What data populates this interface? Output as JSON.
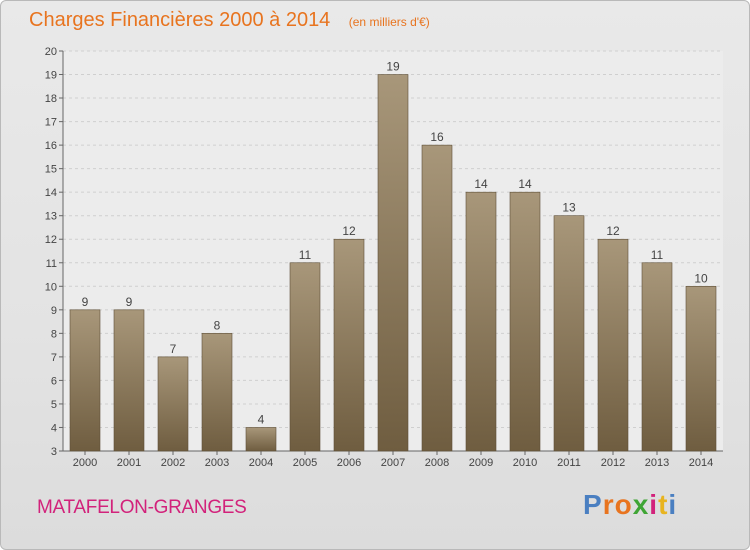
{
  "header": {
    "title": "Charges Financières 2000 à 2014",
    "unit": "(en milliers d'€)"
  },
  "footer": {
    "commune": "MATAFELON-GRANGES",
    "brand": "Proxiti"
  },
  "colors": {
    "title": "#e8741f",
    "commune": "#d2227b",
    "bar_top": "#a8977a",
    "bar_bottom": "#6f5d40",
    "brand_letters": [
      "#4a7fc1",
      "#e8741f",
      "#e8741f",
      "#3fa535",
      "#d2227b",
      "#e8b41f",
      "#4a7fc1"
    ]
  },
  "chart_data": {
    "type": "bar",
    "title": "Charges Financières 2000 à 2014",
    "subtitle": "(en milliers d'€)",
    "categories": [
      "2000",
      "2001",
      "2002",
      "2003",
      "2004",
      "2005",
      "2006",
      "2007",
      "2008",
      "2009",
      "2010",
      "2011",
      "2012",
      "2013",
      "2014"
    ],
    "values": [
      9,
      9,
      7,
      8,
      4,
      11,
      12,
      19,
      16,
      14,
      14,
      13,
      12,
      11,
      10
    ],
    "data_labels": [
      "9",
      "9",
      "7",
      "8",
      "4",
      "11",
      "12",
      "19",
      "16",
      "14",
      "14",
      "13",
      "12",
      "11",
      "10"
    ],
    "xlabel": "",
    "ylabel": "",
    "ylim": [
      3,
      20
    ],
    "yticks": [
      "3",
      "4",
      "5",
      "6",
      "7",
      "8",
      "9",
      "10",
      "11",
      "12",
      "13",
      "14",
      "15",
      "16",
      "17",
      "18",
      "19",
      "20"
    ],
    "grid": true
  }
}
